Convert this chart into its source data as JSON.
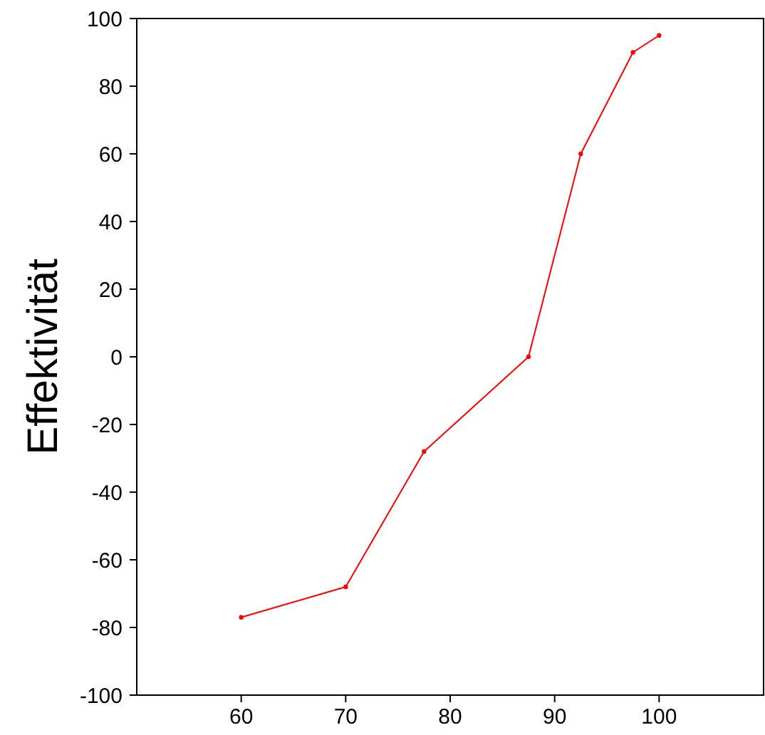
{
  "chart_data": {
    "type": "line",
    "ylabel": "Effektivität",
    "x": [
      60,
      70,
      77.5,
      87.5,
      92.5,
      97.5,
      100
    ],
    "series": [
      {
        "color": "#ff0000",
        "values": [
          -77,
          -68,
          -28,
          0,
          60,
          90,
          95
        ]
      }
    ],
    "xlim": [
      50,
      110
    ],
    "xticks": [
      60,
      70,
      80,
      90,
      100
    ],
    "ylim": [
      -100,
      100
    ],
    "yticks": [
      -100,
      -80,
      -60,
      -40,
      -20,
      0,
      20,
      40,
      60,
      80,
      100
    ],
    "marker": "circle",
    "line_style": "solid"
  }
}
